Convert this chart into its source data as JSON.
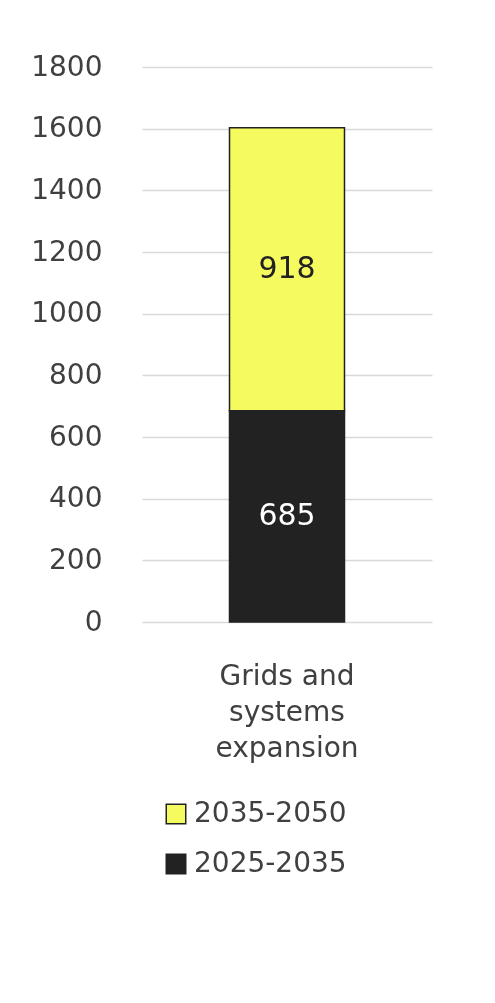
{
  "chart_data": {
    "type": "bar",
    "stacked": true,
    "categories": [
      "Grids and systems expansion"
    ],
    "series": [
      {
        "name": "2025-2035",
        "color": "#222222",
        "values": [
          685
        ]
      },
      {
        "name": "2035-2050",
        "color": "#f5fa5e",
        "values": [
          918
        ]
      }
    ],
    "ylim": [
      0,
      1800
    ],
    "yticks": [
      0,
      200,
      400,
      600,
      800,
      1000,
      1200,
      1400,
      1600,
      1800
    ],
    "grid": "y",
    "legend": "bottom",
    "data_labels": true
  }
}
